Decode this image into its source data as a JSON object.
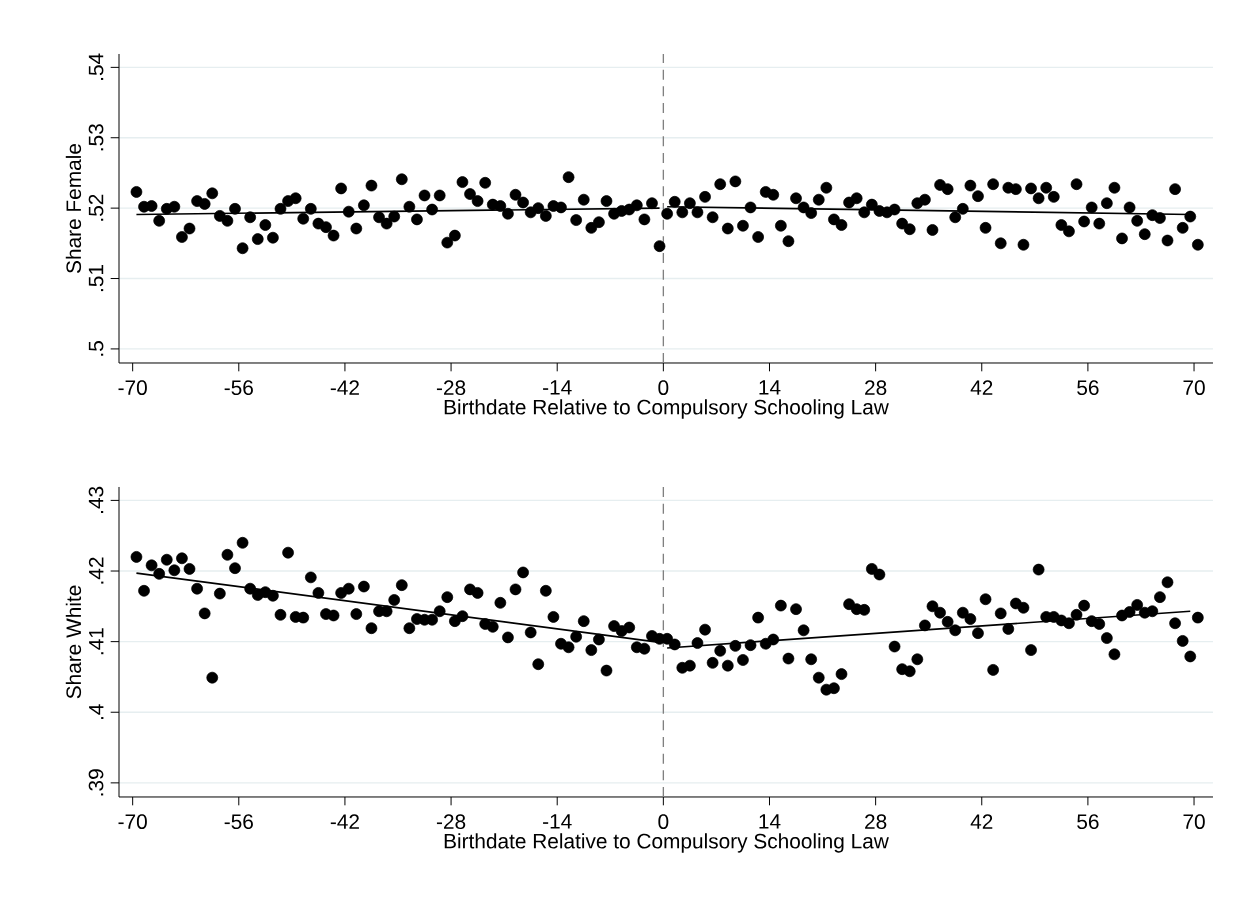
{
  "chart_data": [
    {
      "type": "scatter",
      "xlabel": "Birthdate Relative to Compulsory Schooling Law",
      "ylabel": "Share Female",
      "xlim": [
        -71.8,
        72.5
      ],
      "ylim": [
        0.498,
        0.5419
      ],
      "xticks": [
        -70,
        -56,
        -42,
        -28,
        -14,
        0,
        14,
        28,
        42,
        56,
        70
      ],
      "yticks": [
        {
          "value": 0.5,
          "label": ".5"
        },
        {
          "value": 0.51,
          "label": ".51"
        },
        {
          "value": 0.52,
          "label": ".52"
        },
        {
          "value": 0.53,
          "label": ".53"
        },
        {
          "value": 0.54,
          "label": ".54"
        }
      ],
      "grid": "y",
      "marker": "circle",
      "ref_lines": [
        {
          "axis": "x",
          "value": 0,
          "color": "#808080",
          "line_style": "dashed"
        }
      ],
      "series": [
        {
          "color": "#000000",
          "x": [
            -69.5,
            -68.5,
            -67.5,
            -66.5,
            -65.5,
            -64.5,
            -63.5,
            -62.5,
            -61.5,
            -60.5,
            -59.5,
            -58.5,
            -57.5,
            -56.5,
            -55.5,
            -54.5,
            -53.5,
            -52.5,
            -51.5,
            -50.5,
            -49.5,
            -48.5,
            -47.5,
            -46.5,
            -45.5,
            -44.5,
            -43.5,
            -42.5,
            -41.5,
            -40.5,
            -39.5,
            -38.5,
            -37.5,
            -36.5,
            -35.5,
            -34.5,
            -33.5,
            -32.5,
            -31.5,
            -30.5,
            -29.5,
            -28.5,
            -27.5,
            -26.5,
            -25.5,
            -24.5,
            -23.5,
            -22.5,
            -21.5,
            -20.5,
            -19.5,
            -18.5,
            -17.5,
            -16.5,
            -15.5,
            -14.5,
            -13.5,
            -12.5,
            -11.5,
            -10.5,
            -9.5,
            -8.5,
            -7.5,
            -6.5,
            -5.5,
            -4.5,
            -3.5,
            -2.5,
            -1.5,
            -0.5,
            0.5,
            1.5,
            2.5,
            3.5,
            4.5,
            5.5,
            6.5,
            7.5,
            8.5,
            9.5,
            10.5,
            11.5,
            12.5,
            13.5,
            14.5,
            15.5,
            16.5,
            17.5,
            18.5,
            19.5,
            20.5,
            21.5,
            22.5,
            23.5,
            24.5,
            25.5,
            26.5,
            27.5,
            28.5,
            29.5,
            30.5,
            31.5,
            32.5,
            33.5,
            34.5,
            35.5,
            36.5,
            37.5,
            38.5,
            39.5,
            40.5,
            41.5,
            42.5,
            43.5,
            44.5,
            45.5,
            46.5,
            47.5,
            48.5,
            49.5,
            50.5,
            51.5,
            52.5,
            53.5,
            54.5,
            55.5,
            56.5,
            57.5,
            58.5,
            59.5,
            60.5,
            61.5,
            62.5,
            63.5,
            64.5,
            65.5,
            66.5,
            67.5,
            68.5,
            69.5,
            70.5
          ],
          "values": [
            0.5223,
            0.5202,
            0.5203,
            0.5182,
            0.5199,
            0.5202,
            0.5159,
            0.5171,
            0.521,
            0.5206,
            0.5221,
            0.5189,
            0.5182,
            0.5199,
            0.5143,
            0.5187,
            0.5156,
            0.5176,
            0.5158,
            0.5199,
            0.521,
            0.5214,
            0.5185,
            0.5199,
            0.5178,
            0.5173,
            0.5161,
            0.5228,
            0.5195,
            0.5171,
            0.5204,
            0.5232,
            0.5187,
            0.5178,
            0.5188,
            0.5241,
            0.5202,
            0.5184,
            0.5218,
            0.5198,
            0.5218,
            0.5151,
            0.5161,
            0.5237,
            0.522,
            0.521,
            0.5236,
            0.5205,
            0.5203,
            0.5192,
            0.5219,
            0.5208,
            0.5194,
            0.52,
            0.5189,
            0.5203,
            0.5201,
            0.5244,
            0.5183,
            0.5212,
            0.5172,
            0.518,
            0.521,
            0.5192,
            0.5196,
            0.5198,
            0.5204,
            0.5184,
            0.5207,
            0.5146,
            0.5192,
            0.5209,
            0.5194,
            0.5207,
            0.5194,
            0.5216,
            0.5187,
            0.5234,
            0.5171,
            0.5238,
            0.5175,
            0.5201,
            0.5159,
            0.5223,
            0.5219,
            0.5175,
            0.5153,
            0.5214,
            0.5201,
            0.5193,
            0.5212,
            0.5229,
            0.5184,
            0.5176,
            0.5208,
            0.5214,
            0.5194,
            0.5205,
            0.5196,
            0.5194,
            0.5198,
            0.5178,
            0.517,
            0.5207,
            0.5212,
            0.5169,
            0.5233,
            0.5227,
            0.5187,
            0.5199,
            0.5232,
            0.5217,
            0.5172,
            0.5234,
            0.515,
            0.5229,
            0.5227,
            0.5148,
            0.5228,
            0.5214,
            0.5229,
            0.5216,
            0.5176,
            0.5167,
            0.5234,
            0.5181,
            0.5201,
            0.5178,
            0.5207,
            0.5229,
            0.5157,
            0.5201,
            0.5182,
            0.5163,
            0.519,
            0.5186,
            0.5154,
            0.5227,
            0.5172,
            0.5188,
            0.5148
          ]
        },
        {
          "type": "line",
          "marker": "none",
          "color": "#000000",
          "x": [
            -69.5,
            -0.5
          ],
          "values": [
            0.5191,
            0.52
          ]
        },
        {
          "type": "line",
          "marker": "none",
          "color": "#000000",
          "x": [
            0.5,
            69.5
          ],
          "values": [
            0.5202,
            0.5191
          ]
        }
      ]
    },
    {
      "type": "scatter",
      "xlabel": "Birthdate Relative to Compulsory Schooling Law",
      "ylabel": "Share White",
      "xlim": [
        -71.8,
        72.5
      ],
      "ylim": [
        0.388,
        0.4319
      ],
      "xticks": [
        -70,
        -56,
        -42,
        -28,
        -14,
        0,
        14,
        28,
        42,
        56,
        70
      ],
      "yticks": [
        {
          "value": 0.39,
          "label": ".39"
        },
        {
          "value": 0.4,
          "label": ".4"
        },
        {
          "value": 0.41,
          "label": ".41"
        },
        {
          "value": 0.42,
          "label": ".42"
        },
        {
          "value": 0.43,
          "label": ".43"
        }
      ],
      "grid": "y",
      "marker": "circle",
      "ref_lines": [
        {
          "axis": "x",
          "value": 0,
          "color": "#808080",
          "line_style": "dashed"
        }
      ],
      "series": [
        {
          "color": "#000000",
          "x": [
            -69.5,
            -68.5,
            -67.5,
            -66.5,
            -65.5,
            -64.5,
            -63.5,
            -62.5,
            -61.5,
            -60.5,
            -59.5,
            -58.5,
            -57.5,
            -56.5,
            -55.5,
            -54.5,
            -53.5,
            -52.5,
            -51.5,
            -50.5,
            -49.5,
            -48.5,
            -47.5,
            -46.5,
            -45.5,
            -44.5,
            -43.5,
            -42.5,
            -41.5,
            -40.5,
            -39.5,
            -38.5,
            -37.5,
            -36.5,
            -35.5,
            -34.5,
            -33.5,
            -32.5,
            -31.5,
            -30.5,
            -29.5,
            -28.5,
            -27.5,
            -26.5,
            -25.5,
            -24.5,
            -23.5,
            -22.5,
            -21.5,
            -20.5,
            -19.5,
            -18.5,
            -17.5,
            -16.5,
            -15.5,
            -14.5,
            -13.5,
            -12.5,
            -11.5,
            -10.5,
            -9.5,
            -8.5,
            -7.5,
            -6.5,
            -5.5,
            -4.5,
            -3.5,
            -2.5,
            -1.5,
            -0.5,
            0.5,
            1.5,
            2.5,
            3.5,
            4.5,
            5.5,
            6.5,
            7.5,
            8.5,
            9.5,
            10.5,
            11.5,
            12.5,
            13.5,
            14.5,
            15.5,
            16.5,
            17.5,
            18.5,
            19.5,
            20.5,
            21.5,
            22.5,
            23.5,
            24.5,
            25.5,
            26.5,
            27.5,
            28.5,
            30.5,
            31.5,
            32.5,
            33.5,
            34.5,
            35.5,
            36.5,
            37.5,
            38.5,
            39.5,
            40.5,
            41.5,
            42.5,
            43.5,
            44.5,
            45.5,
            46.5,
            47.5,
            48.5,
            49.5,
            50.5,
            51.5,
            52.5,
            53.5,
            54.5,
            55.5,
            56.5,
            57.5,
            58.5,
            59.5,
            60.5,
            61.5,
            62.5,
            63.5,
            64.5,
            65.5,
            66.5,
            67.5,
            68.5,
            69.5,
            70.5
          ],
          "values": [
            0.422,
            0.4172,
            0.4208,
            0.4196,
            0.4216,
            0.4201,
            0.4218,
            0.4203,
            0.4175,
            0.414,
            0.4049,
            0.4168,
            0.4223,
            0.4204,
            0.424,
            0.4175,
            0.4166,
            0.417,
            0.4165,
            0.4138,
            0.4226,
            0.4135,
            0.4134,
            0.4191,
            0.4169,
            0.4139,
            0.4137,
            0.4169,
            0.4175,
            0.4139,
            0.4178,
            0.4119,
            0.4143,
            0.4143,
            0.4159,
            0.418,
            0.4119,
            0.4132,
            0.4131,
            0.4131,
            0.4143,
            0.4163,
            0.4129,
            0.4136,
            0.4174,
            0.4169,
            0.4125,
            0.4121,
            0.4155,
            0.4106,
            0.4174,
            0.4198,
            0.4113,
            0.4068,
            0.4172,
            0.4135,
            0.4097,
            0.4092,
            0.4107,
            0.4129,
            0.4088,
            0.4103,
            0.4059,
            0.4122,
            0.4115,
            0.412,
            0.4092,
            0.409,
            0.4108,
            0.4104,
            0.4104,
            0.4096,
            0.4063,
            0.4066,
            0.4098,
            0.4117,
            0.407,
            0.4087,
            0.4066,
            0.4094,
            0.4074,
            0.4095,
            0.4134,
            0.4097,
            0.4103,
            0.4151,
            0.4076,
            0.4146,
            0.4116,
            0.4075,
            0.4049,
            0.4032,
            0.4034,
            0.4054,
            0.4153,
            0.4146,
            0.4145,
            0.4203,
            0.4195,
            0.4093,
            0.4061,
            0.4058,
            0.4075,
            0.4123,
            0.415,
            0.4141,
            0.4128,
            0.4116,
            0.4141,
            0.4132,
            0.4112,
            0.416,
            0.406,
            0.414,
            0.4118,
            0.4154,
            0.4148,
            0.4088,
            0.4202,
            0.4135,
            0.4135,
            0.413,
            0.4126,
            0.4138,
            0.4151,
            0.4129,
            0.4125,
            0.4105,
            0.4082,
            0.4137,
            0.4142,
            0.4152,
            0.4141,
            0.4143,
            0.4163,
            0.4184,
            0.4126,
            0.4101,
            0.4079,
            0.4134
          ]
        },
        {
          "type": "line",
          "marker": "none",
          "color": "#000000",
          "x": [
            -69.5,
            -0.5
          ],
          "values": [
            0.4197,
            0.4099
          ]
        },
        {
          "type": "line",
          "marker": "none",
          "color": "#000000",
          "x": [
            0.5,
            69.5
          ],
          "values": [
            0.4091,
            0.4143
          ]
        }
      ]
    }
  ]
}
